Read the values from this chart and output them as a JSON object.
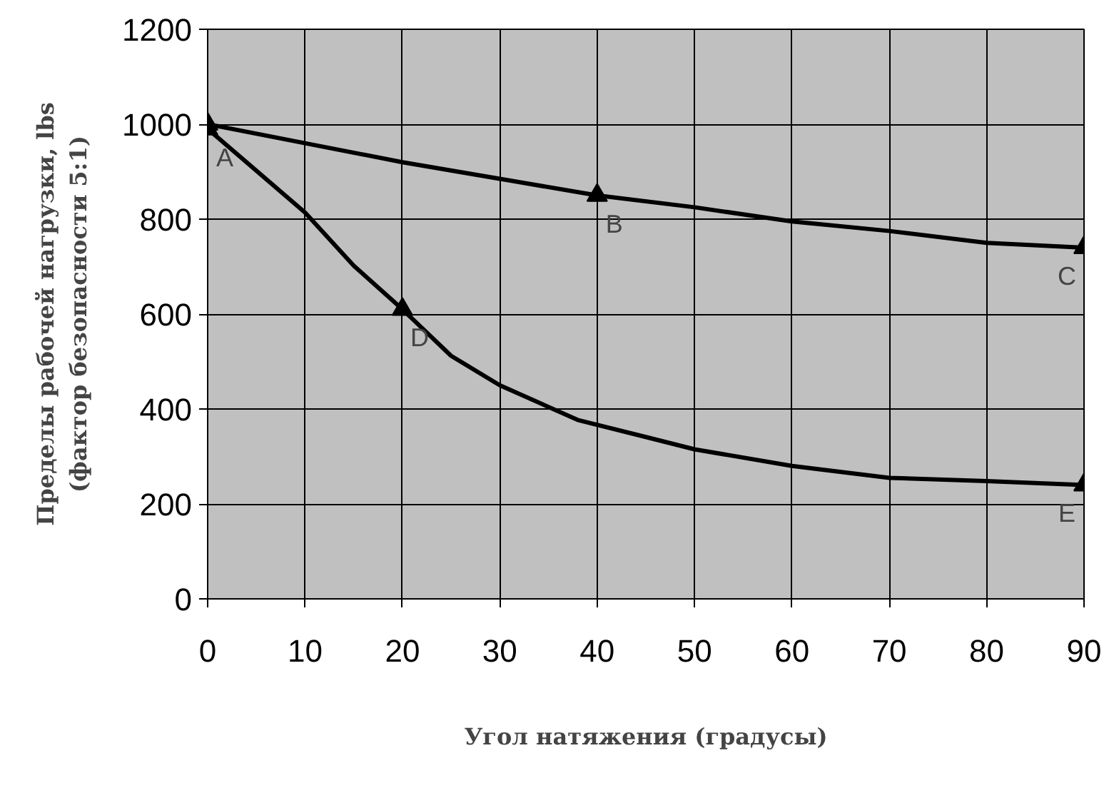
{
  "chart_data": {
    "type": "line",
    "xlabel": "Угол натяжения (градусы)",
    "ylabel": "Пределы рабочей нагрузки, lbs\n(фактор безопасности 5:1)",
    "xlim": [
      0,
      90
    ],
    "ylim": [
      0,
      1200
    ],
    "xticks": [
      0,
      10,
      20,
      30,
      40,
      50,
      60,
      70,
      80,
      90
    ],
    "yticks": [
      0,
      200,
      400,
      600,
      800,
      1000,
      1200
    ],
    "grid": true,
    "line_style": "solid",
    "marker": "none",
    "series": [
      {
        "color": "#000000",
        "x": [
          0,
          10,
          20,
          30,
          40,
          50,
          60,
          70,
          80,
          90
        ],
        "values": [
          1000,
          960,
          920,
          885,
          850,
          825,
          795,
          775,
          750,
          740
        ]
      },
      {
        "color": "#000000",
        "x": [
          0,
          10,
          15,
          20,
          25,
          30,
          38,
          45,
          50,
          60,
          70,
          80,
          90
        ],
        "values": [
          990,
          814,
          702,
          610,
          512,
          450,
          377,
          341,
          315,
          280,
          255,
          248,
          240
        ]
      },
      {
        "type": "scatter",
        "marker": "triangle",
        "color": "#000000",
        "x": [
          0,
          0,
          40,
          90,
          20,
          90
        ],
        "values": [
          1000,
          990,
          850,
          740,
          610,
          240
        ]
      }
    ],
    "annotations": [
      {
        "text": "A",
        "x": 0,
        "y": 990
      },
      {
        "text": "B",
        "x": 40,
        "y": 850
      },
      {
        "text": "C",
        "x": 90,
        "y": 740
      },
      {
        "text": "D",
        "x": 20,
        "y": 610
      },
      {
        "text": "E",
        "x": 90,
        "y": 240
      }
    ]
  }
}
